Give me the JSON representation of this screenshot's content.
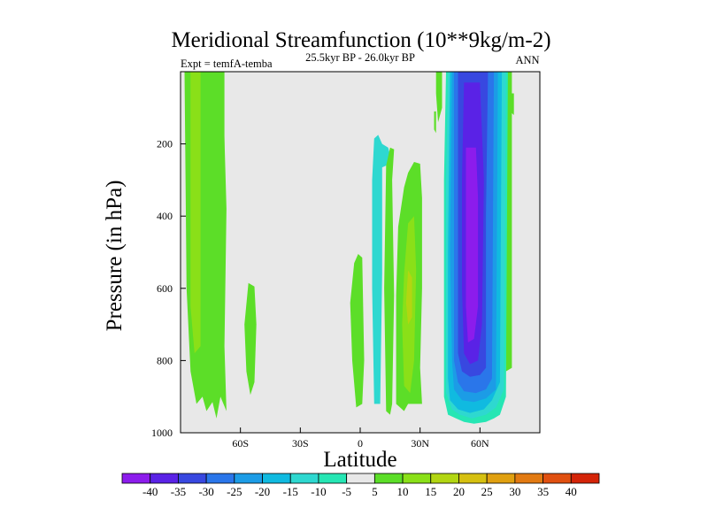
{
  "chart_data": {
    "type": "contour",
    "title": "Meridional Streamfunction (10**9kg/m-2)",
    "subtitle_left": "Expt = temfA-temba",
    "subtitle_center": "25.5kyr BP - 26.0kyr BP",
    "subtitle_right": "ANN",
    "xlabel": "Latitude",
    "ylabel": "Pressure (in hPa)",
    "xlim": [
      -90,
      90
    ],
    "ylim": [
      1000,
      0
    ],
    "xticks": [
      {
        "value": -60,
        "label": "60S"
      },
      {
        "value": -30,
        "label": "30S"
      },
      {
        "value": 0,
        "label": "0"
      },
      {
        "value": 30,
        "label": "30N"
      },
      {
        "value": 60,
        "label": "60N"
      }
    ],
    "yticks": [
      {
        "value": 200,
        "label": "200"
      },
      {
        "value": 400,
        "label": "400"
      },
      {
        "value": 600,
        "label": "600"
      },
      {
        "value": 800,
        "label": "800"
      },
      {
        "value": 1000,
        "label": "1000"
      }
    ],
    "background_color": "#e8e8e8",
    "colorbar": {
      "labels": [
        "-40",
        "-35",
        "-30",
        "-25",
        "-20",
        "-15",
        "-10",
        "-5",
        "5",
        "10",
        "15",
        "20",
        "25",
        "30",
        "35",
        "40"
      ],
      "colors": [
        "#8c1cec",
        "#5a22e6",
        "#3848e0",
        "#2a76ea",
        "#1c9ce6",
        "#10bae0",
        "#2ed8d0",
        "#26e6b4",
        "#e8e8e8",
        "#5cde28",
        "#8ae018",
        "#b2d612",
        "#d6c010",
        "#e0a010",
        "#e27a12",
        "#e05010",
        "#d42408"
      ]
    },
    "contour_regions": [
      {
        "level": 10,
        "color": "#5cde28",
        "points": [
          [
            -88,
            -2
          ],
          [
            -69,
            -2
          ],
          [
            -67,
            380
          ],
          [
            -68,
            760
          ],
          [
            -67,
            940
          ],
          [
            -70,
            900
          ],
          [
            -72,
            960
          ],
          [
            -74,
            915
          ],
          [
            -77,
            940
          ],
          [
            -79,
            900
          ],
          [
            -82,
            920
          ],
          [
            -85,
            830
          ],
          [
            -87,
            600
          ]
        ]
      },
      {
        "level": 15,
        "color": "#8ae018",
        "points": [
          [
            -85,
            -2
          ],
          [
            -80,
            -2
          ],
          [
            -80,
            760
          ],
          [
            -83,
            780
          ],
          [
            -85,
            650
          ]
        ]
      },
      {
        "level": 10,
        "color": "#5cde28",
        "points": [
          [
            -78,
            -2
          ],
          [
            -74,
            -2
          ],
          [
            -74,
            420
          ],
          [
            -75,
            760
          ],
          [
            -77,
            770
          ],
          [
            -78,
            600
          ]
        ]
      },
      {
        "level": 10,
        "color": "#5cde28",
        "points": [
          [
            -71,
            -2
          ],
          [
            -68,
            -2
          ],
          [
            -68,
            280
          ],
          [
            -70,
            310
          ]
        ]
      },
      {
        "level": 10,
        "color": "#5cde28",
        "points": [
          [
            -56,
            585
          ],
          [
            -53,
            595
          ],
          [
            -52,
            700
          ],
          [
            -53,
            860
          ],
          [
            -55,
            895
          ],
          [
            -57,
            830
          ],
          [
            -58,
            700
          ]
        ]
      },
      {
        "level": 10,
        "color": "#5cde28",
        "points": [
          [
            -1,
            505
          ],
          [
            1,
            515
          ],
          [
            2,
            800
          ],
          [
            1,
            920
          ],
          [
            -2,
            930
          ],
          [
            -4,
            800
          ],
          [
            -5,
            640
          ],
          [
            -3,
            530
          ]
        ]
      },
      {
        "level": -10,
        "color": "#2ed8d0",
        "points": [
          [
            7,
            185
          ],
          [
            9,
            175
          ],
          [
            11,
            200
          ],
          [
            14,
            210
          ],
          [
            15,
            230
          ],
          [
            13,
            260
          ],
          [
            11,
            265
          ],
          [
            11,
            560
          ],
          [
            10,
            920
          ],
          [
            7,
            920
          ],
          [
            6,
            600
          ],
          [
            6,
            300
          ]
        ]
      },
      {
        "level": 10,
        "color": "#5cde28",
        "points": [
          [
            15,
            210
          ],
          [
            17,
            215
          ],
          [
            16,
            300
          ],
          [
            17,
            620
          ],
          [
            16,
            920
          ],
          [
            15,
            950
          ],
          [
            13,
            940
          ],
          [
            12,
            600
          ],
          [
            13,
            260
          ]
        ]
      },
      {
        "level": 10,
        "color": "#5cde28",
        "points": [
          [
            27,
            250
          ],
          [
            30,
            255
          ],
          [
            31,
            350
          ],
          [
            31,
            600
          ],
          [
            30,
            820
          ],
          [
            31,
            920
          ],
          [
            28,
            920
          ],
          [
            24,
            920
          ],
          [
            22,
            940
          ],
          [
            18,
            920
          ],
          [
            18,
            620
          ],
          [
            19,
            430
          ],
          [
            22,
            320
          ],
          [
            24,
            280
          ]
        ]
      },
      {
        "level": 15,
        "color": "#8ae018",
        "points": [
          [
            24,
            420
          ],
          [
            27,
            400
          ],
          [
            28,
            550
          ],
          [
            27,
            800
          ],
          [
            25,
            890
          ],
          [
            22,
            870
          ],
          [
            21,
            700
          ],
          [
            22,
            560
          ]
        ]
      },
      {
        "level": 20,
        "color": "#b2d612",
        "points": [
          [
            24,
            550
          ],
          [
            26,
            570
          ],
          [
            26,
            680
          ],
          [
            24,
            700
          ],
          [
            23,
            640
          ]
        ]
      },
      {
        "level": 10,
        "color": "#5cde28",
        "points": [
          [
            38,
            -2
          ],
          [
            41,
            -2
          ],
          [
            41,
            100
          ],
          [
            39,
            140
          ],
          [
            38,
            60
          ]
        ]
      },
      {
        "level": 10,
        "color": "#5cde28",
        "points": [
          [
            37,
            110
          ],
          [
            38,
            110
          ],
          [
            38,
            170
          ],
          [
            37,
            160
          ]
        ]
      },
      {
        "level": 10,
        "color": "#5cde28",
        "points": [
          [
            73,
            -2
          ],
          [
            76,
            -2
          ],
          [
            76,
            820
          ],
          [
            73,
            830
          ]
        ]
      },
      {
        "level": 10,
        "color": "#5cde28",
        "points": [
          [
            75,
            60
          ],
          [
            77,
            60
          ],
          [
            77,
            120
          ],
          [
            75,
            110
          ]
        ]
      },
      {
        "level": -5,
        "color": "#26e6b4",
        "points": [
          [
            43,
            -2
          ],
          [
            74,
            -2
          ],
          [
            73,
            900
          ],
          [
            70,
            950
          ],
          [
            67,
            960
          ],
          [
            63,
            970
          ],
          [
            57,
            975
          ],
          [
            52,
            970
          ],
          [
            48,
            960
          ],
          [
            44,
            950
          ],
          [
            42,
            900
          ],
          [
            42,
            700
          ],
          [
            42,
            300
          ]
        ]
      },
      {
        "level": -10,
        "color": "#2ed8d0",
        "points": [
          [
            44,
            -2
          ],
          [
            73,
            -2
          ],
          [
            72,
            880
          ],
          [
            68,
            930
          ],
          [
            63,
            950
          ],
          [
            56,
            960
          ],
          [
            50,
            950
          ],
          [
            46,
            935
          ],
          [
            43,
            890
          ],
          [
            43,
            700
          ],
          [
            43,
            300
          ]
        ]
      },
      {
        "level": -15,
        "color": "#10bae0",
        "points": [
          [
            45,
            -2
          ],
          [
            71,
            -2
          ],
          [
            70,
            860
          ],
          [
            66,
            910
          ],
          [
            62,
            935
          ],
          [
            55,
            945
          ],
          [
            49,
            935
          ],
          [
            45,
            910
          ],
          [
            44,
            850
          ],
          [
            44,
            500
          ]
        ]
      },
      {
        "level": -20,
        "color": "#1c9ce6",
        "points": [
          [
            46,
            -2
          ],
          [
            69,
            -2
          ],
          [
            68,
            880
          ],
          [
            63,
            905
          ],
          [
            57,
            915
          ],
          [
            51,
            910
          ],
          [
            47,
            880
          ],
          [
            46,
            800
          ],
          [
            45,
            500
          ]
        ]
      },
      {
        "level": -25,
        "color": "#2a76ea",
        "points": [
          [
            47,
            -2
          ],
          [
            67,
            -2
          ],
          [
            66,
            850
          ],
          [
            63,
            880
          ],
          [
            58,
            890
          ],
          [
            52,
            885
          ],
          [
            49,
            860
          ],
          [
            47,
            800
          ]
        ]
      },
      {
        "level": -30,
        "color": "#3848e0",
        "points": [
          [
            49,
            -2
          ],
          [
            64,
            -2
          ],
          [
            63,
            400
          ],
          [
            63,
            820
          ],
          [
            60,
            840
          ],
          [
            55,
            845
          ],
          [
            51,
            830
          ],
          [
            49,
            780
          ],
          [
            49,
            400
          ]
        ]
      },
      {
        "level": -35,
        "color": "#5a22e6",
        "points": [
          [
            52,
            30
          ],
          [
            60,
            30
          ],
          [
            62,
            300
          ],
          [
            61,
            700
          ],
          [
            59,
            800
          ],
          [
            55,
            810
          ],
          [
            52,
            780
          ],
          [
            51,
            600
          ],
          [
            51,
            300
          ]
        ]
      },
      {
        "level": -40,
        "color": "#8c1cec",
        "points": [
          [
            53,
            210
          ],
          [
            58,
            210
          ],
          [
            59,
            350
          ],
          [
            59,
            650
          ],
          [
            57,
            740
          ],
          [
            54,
            750
          ],
          [
            53,
            650
          ],
          [
            53,
            450
          ]
        ]
      }
    ]
  }
}
